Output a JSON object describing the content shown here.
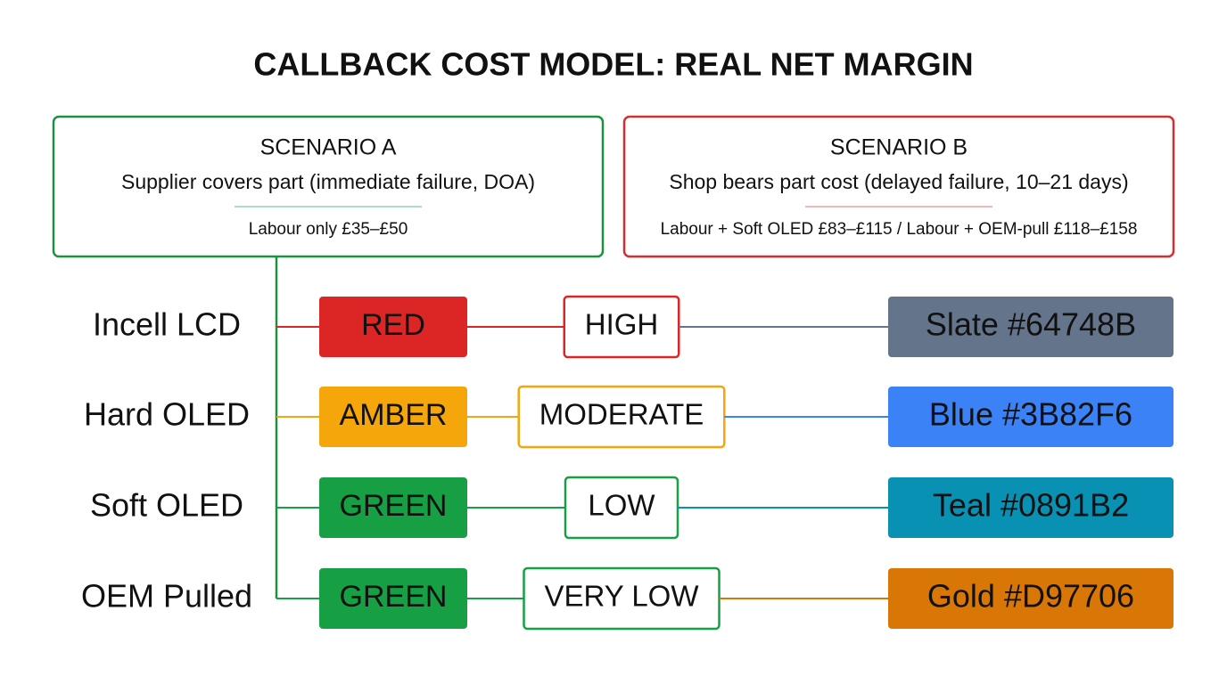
{
  "title": "CALLBACK COST MODEL: REAL NET MARGIN",
  "scenarios": [
    {
      "heading": "SCENARIO A",
      "subtitle": "Supplier covers part (immediate failure, DOA)",
      "detail": "Labour only £35–£50",
      "color": "#1e9140"
    },
    {
      "heading": "SCENARIO B",
      "subtitle": "Shop bears part cost (delayed failure, 10–21 days)",
      "detail": "Labour + Soft OLED £83–£115 / Labour + OEM-pull £118–£158",
      "color": "#d32f2f"
    }
  ],
  "rows": [
    {
      "label": "Incell LCD",
      "status": "RED",
      "status_color": "#dc2626",
      "level": "HIGH",
      "swatch": "Slate #64748B",
      "swatch_color": "#64748B"
    },
    {
      "label": "Hard OLED",
      "status": "AMBER",
      "status_color": "#f4a60b",
      "level": "MODERATE",
      "swatch": "Blue #3B82F6",
      "swatch_color": "#3B82F6"
    },
    {
      "label": "Soft OLED",
      "status": "GREEN",
      "status_color": "#16a043",
      "level": "LOW",
      "swatch": "Teal #0891B2",
      "swatch_color": "#0891B2"
    },
    {
      "label": "OEM Pulled",
      "status": "GREEN",
      "status_color": "#16a043",
      "level": "VERY LOW",
      "swatch": "Gold #D97706",
      "swatch_color": "#D97706"
    }
  ]
}
